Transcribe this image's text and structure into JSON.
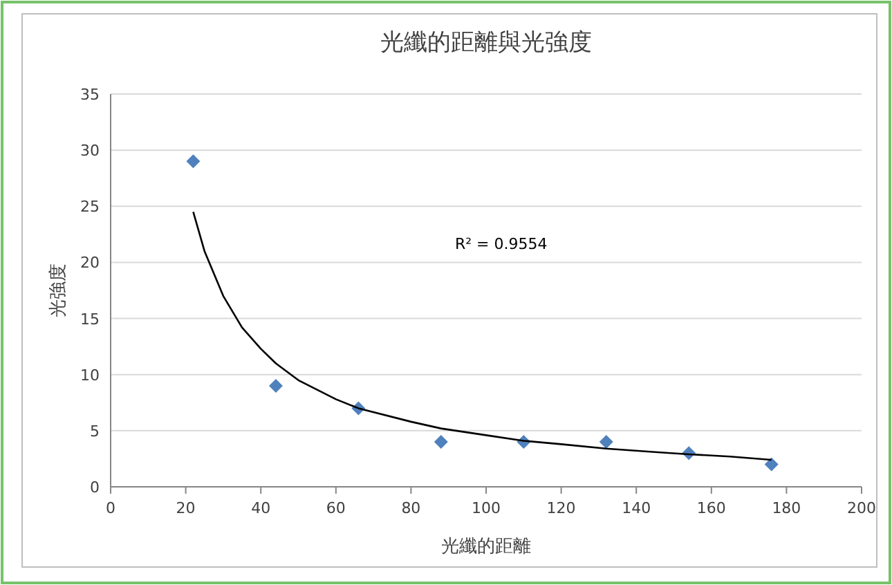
{
  "chart_data": {
    "type": "scatter",
    "title": "光纖的距離與光強度",
    "xlabel": "光纖的距離",
    "ylabel": "光強度",
    "annotations": [
      "R² = 0.9554"
    ],
    "xlim": [
      0,
      200
    ],
    "ylim": [
      0,
      35
    ],
    "xticks": [
      0,
      20,
      40,
      60,
      80,
      100,
      120,
      140,
      160,
      180,
      200
    ],
    "yticks": [
      0,
      5,
      10,
      15,
      20,
      25,
      30,
      35
    ],
    "grid": "y",
    "series": [
      {
        "marker": "diamond",
        "color": "#4f81bd",
        "x": [
          22,
          44,
          66,
          88,
          110,
          132,
          154,
          176
        ],
        "values": [
          29,
          9,
          7,
          4,
          4,
          4,
          3,
          2
        ]
      },
      {
        "type": "line",
        "marker": "none",
        "color": "#000000",
        "x": [
          22,
          25,
          30,
          35,
          40,
          44,
          50,
          60,
          66,
          80,
          88,
          100,
          110,
          120,
          132,
          145,
          154,
          165,
          176
        ],
        "values": [
          24.5,
          21,
          17,
          14.2,
          12.3,
          11,
          9.5,
          7.8,
          7,
          5.8,
          5.2,
          4.6,
          4.1,
          3.8,
          3.4,
          3.1,
          2.9,
          2.7,
          2.4
        ]
      }
    ]
  }
}
